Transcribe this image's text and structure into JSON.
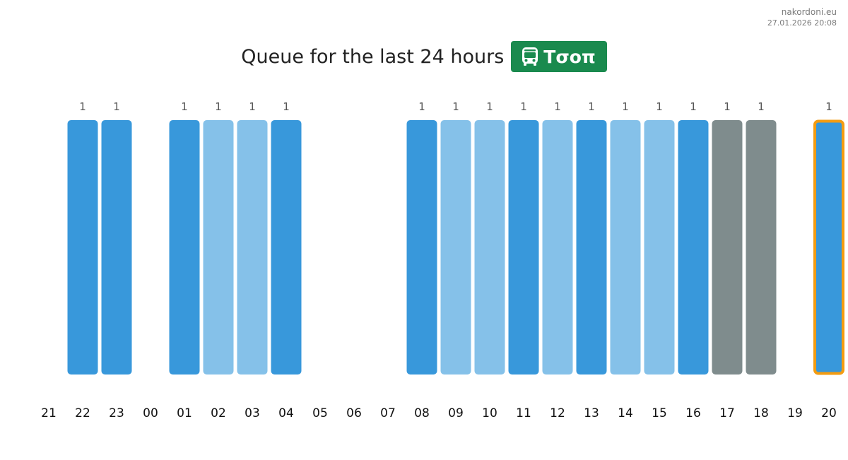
{
  "watermark": {
    "site": "nakordoni.eu",
    "timestamp": "27.01.2026 20:08"
  },
  "header": {
    "title": "Queue for the last 24 hours",
    "badge_icon": "bus-icon",
    "badge_label": "Τσοπ",
    "badge_color": "#1a8a4e"
  },
  "chart_data": {
    "type": "bar",
    "title": "Queue for the last 24 hours",
    "xlabel": "",
    "ylabel": "",
    "ylim": [
      0,
      1
    ],
    "grid": false,
    "legend": "none",
    "categories": [
      "21",
      "22",
      "23",
      "00",
      "01",
      "02",
      "03",
      "04",
      "05",
      "06",
      "07",
      "08",
      "09",
      "10",
      "11",
      "12",
      "13",
      "14",
      "15",
      "16",
      "17",
      "18",
      "19",
      "20"
    ],
    "values": [
      null,
      1,
      1,
      null,
      1,
      1,
      1,
      1,
      null,
      null,
      null,
      1,
      1,
      1,
      1,
      1,
      1,
      1,
      1,
      1,
      1,
      1,
      null,
      1
    ],
    "bar_colors": [
      null,
      "#3898db",
      "#3898db",
      null,
      "#3898db",
      "#85c1e9",
      "#85c1e9",
      "#3898db",
      null,
      null,
      null,
      "#3898db",
      "#85c1e9",
      "#85c1e9",
      "#3898db",
      "#85c1e9",
      "#3898db",
      "#85c1e9",
      "#85c1e9",
      "#3898db",
      "#7f8c8d",
      "#7f8c8d",
      null,
      "#3898db"
    ],
    "highlighted_category": "20",
    "highlight_color": "#f39c12"
  }
}
